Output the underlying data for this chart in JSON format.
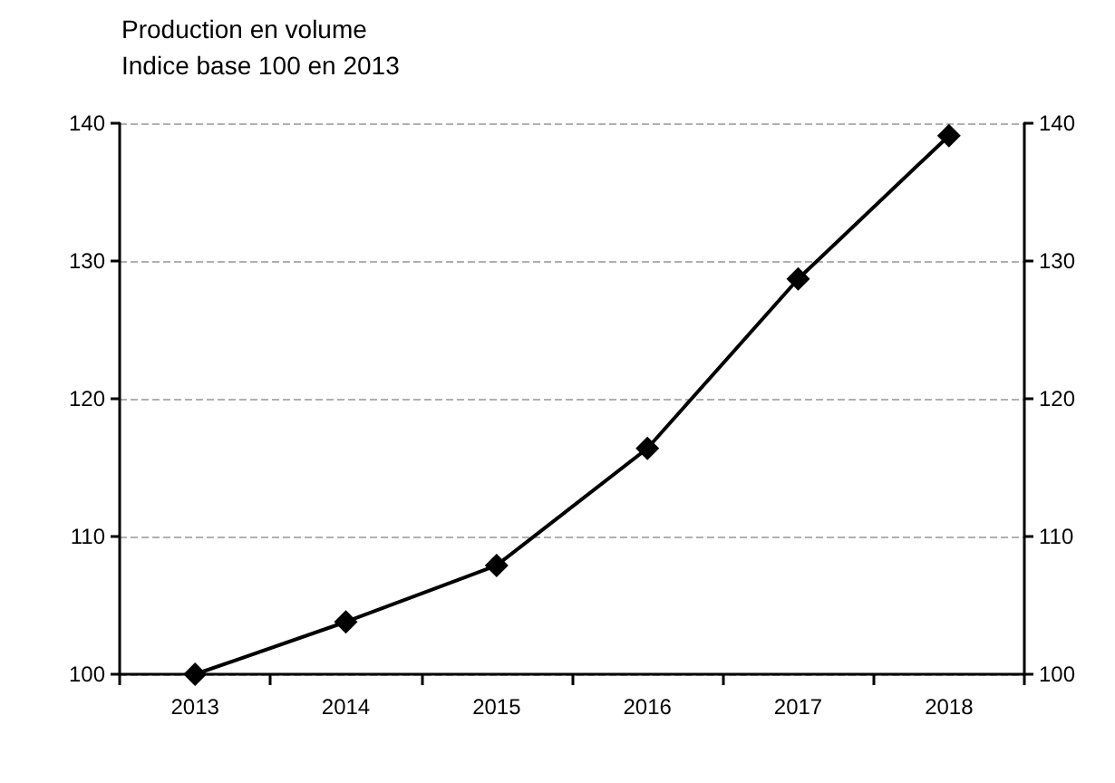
{
  "chart_data": {
    "type": "line",
    "title": "Production en volume",
    "subtitle": "Indice base 100 en 2013",
    "categories": [
      "2013",
      "2014",
      "2015",
      "2016",
      "2017",
      "2018"
    ],
    "series": [
      {
        "color": "#000000",
        "values": [
          100,
          103.8,
          107.9,
          116.4,
          128.7,
          139.1
        ]
      }
    ],
    "ylim": [
      100,
      140
    ],
    "yticks": [
      100,
      110,
      120,
      130,
      140
    ],
    "y2lim": [
      100,
      140
    ],
    "y2ticks": [
      100,
      110,
      120,
      130,
      140
    ],
    "grid": "y",
    "marker": "diamond",
    "line_style": "solid"
  }
}
